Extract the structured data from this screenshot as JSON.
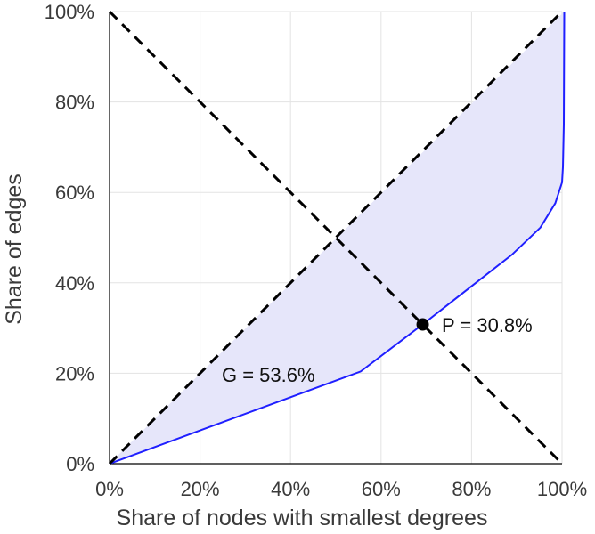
{
  "chart_data": {
    "type": "line",
    "title": "",
    "xlabel": "Share of nodes with smallest degrees",
    "ylabel": "Share of edges",
    "xlim": [
      0,
      100
    ],
    "ylim": [
      0,
      100
    ],
    "xticks": [
      "0%",
      "20%",
      "40%",
      "60%",
      "80%",
      "100%"
    ],
    "yticks": [
      "0%",
      "20%",
      "40%",
      "60%",
      "80%",
      "100%"
    ],
    "grid": true,
    "series": [
      {
        "name": "Lorenz curve",
        "color": "#1f1fff",
        "fill": "#e6e6fa",
        "x": [
          0,
          55.5,
          69.2,
          88.9,
          95.2,
          98.5,
          100,
          100.2,
          100.4,
          100.5
        ],
        "y": [
          0,
          20.4,
          30.8,
          46.2,
          52.2,
          57.6,
          62.2,
          65.6,
          75.0,
          100
        ]
      },
      {
        "name": "equality line",
        "color": "#000000",
        "dash": true,
        "x": [
          0,
          100
        ],
        "y": [
          0,
          100
        ]
      },
      {
        "name": "anti-diagonal",
        "color": "#000000",
        "dash": true,
        "x": [
          0,
          100
        ],
        "y": [
          100,
          0
        ]
      }
    ],
    "points": [
      {
        "name": "P",
        "x": 69.2,
        "y": 30.8
      }
    ],
    "annotations": {
      "gini": "G = 53.6%",
      "point": "P = 30.8%"
    }
  }
}
